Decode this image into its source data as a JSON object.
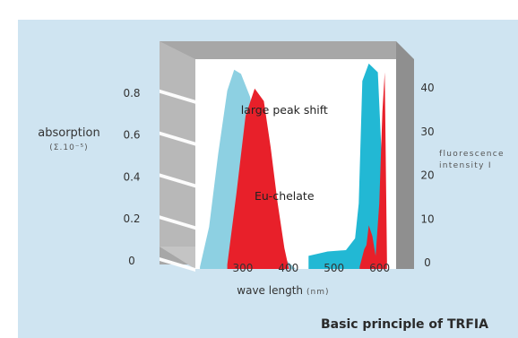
{
  "chart_data": {
    "type": "area",
    "title": "Basic principle of TRFIA",
    "xlabel": "wave length",
    "xlabel_unit": "(nm)",
    "x_ticks": [
      300,
      400,
      500,
      600
    ],
    "xlim": [
      200,
      640
    ],
    "y_left": {
      "label": "absorption",
      "sublabel": "(Σ.10⁻⁵)",
      "ticks": [
        0,
        0.2,
        0.4,
        0.6,
        0.8
      ],
      "tick_labels": [
        "0",
        "0.2",
        "0.4",
        "0.6",
        "0.8"
      ],
      "ylim": [
        0,
        1.0
      ]
    },
    "y_right": {
      "label_line1": "fluorescence",
      "label_line2": "intensity I",
      "ticks": [
        0,
        10,
        20,
        30,
        40
      ],
      "tick_labels": [
        "0",
        "10",
        "20",
        "30",
        "40"
      ],
      "ylim": [
        0,
        48
      ]
    },
    "annotations": [
      {
        "text": "large peak shift",
        "x": 395,
        "y": 0.74
      },
      {
        "text": "Eu-chelate",
        "x": 395,
        "y": 0.33
      }
    ],
    "series": [
      {
        "axis": "left",
        "color": "#8dd0e2",
        "x": [
          210,
          230,
          250,
          270,
          285,
          300,
          320,
          340,
          360,
          380,
          400,
          420
        ],
        "y": [
          0.01,
          0.2,
          0.55,
          0.85,
          0.95,
          0.93,
          0.82,
          0.55,
          0.3,
          0.12,
          0.04,
          0.0
        ]
      },
      {
        "axis": "left",
        "color": "#e8202a",
        "x": [
          270,
          290,
          310,
          330,
          350,
          365,
          380,
          395,
          405
        ],
        "y": [
          0.02,
          0.36,
          0.73,
          0.86,
          0.8,
          0.58,
          0.32,
          0.1,
          0.0
        ]
      },
      {
        "axis": "right",
        "color": "#22b8d4",
        "x": [
          448,
          490,
          530,
          550,
          558,
          566,
          580,
          600,
          610,
          618
        ],
        "y": [
          3.0,
          4.0,
          4.3,
          7.0,
          15.0,
          43.0,
          47.0,
          45.0,
          22.0,
          1.0
        ]
      },
      {
        "axis": "right",
        "color": "#e8202a",
        "x": [
          560,
          570,
          575,
          580,
          588,
          595,
          603,
          610,
          615,
          620
        ],
        "y": [
          0.5,
          4.5,
          5.5,
          10.0,
          7.5,
          3.0,
          15.0,
          36.0,
          45.0,
          2.0
        ]
      }
    ]
  }
}
